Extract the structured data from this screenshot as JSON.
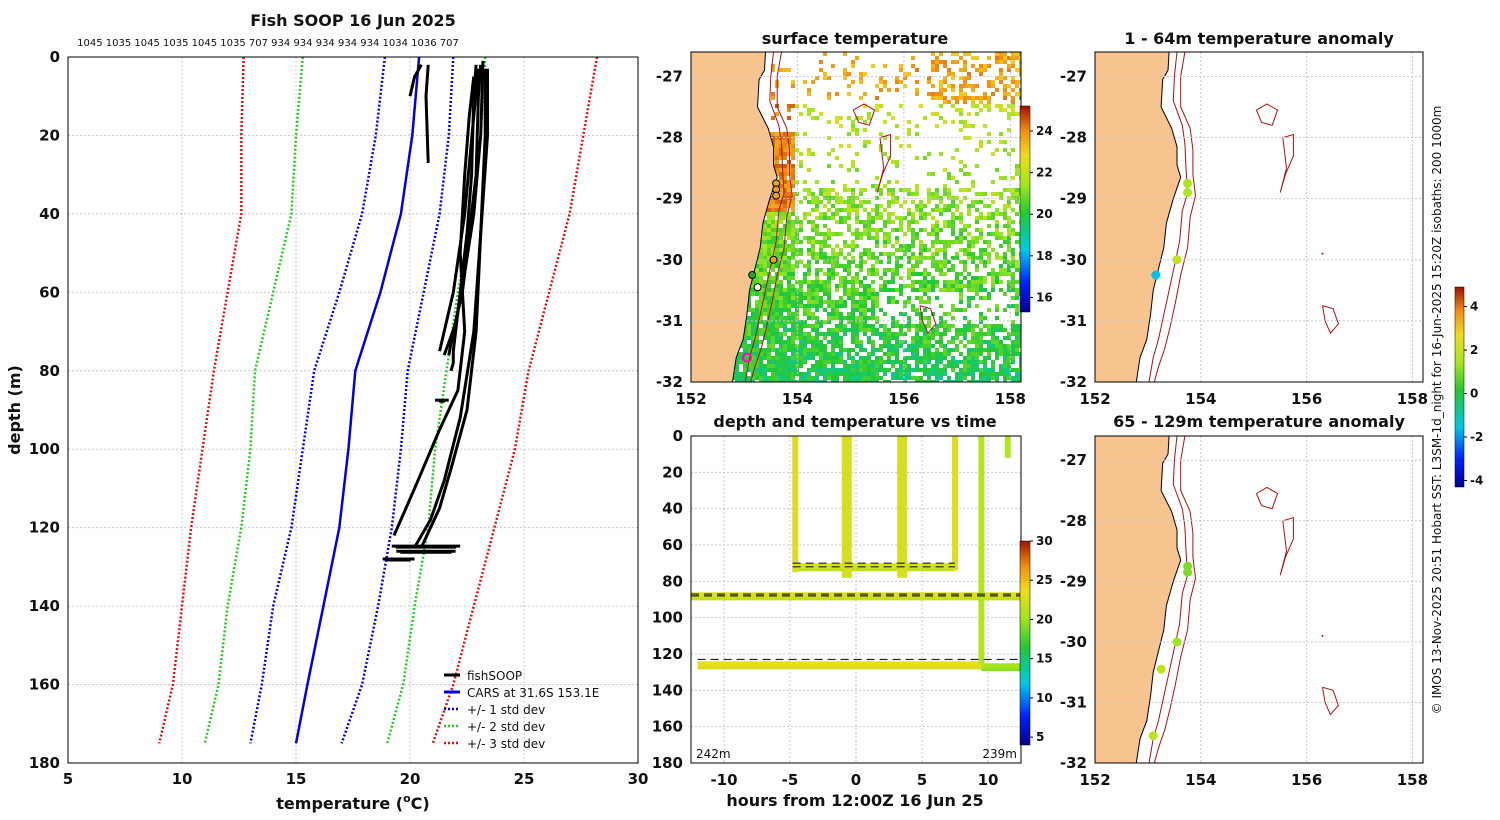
{
  "colors": {
    "land": "#F7C38E",
    "isobath": "#B01010",
    "cars": "#0000E0",
    "std1": "#0000E0",
    "std2": "#22CC22",
    "std3": "#E01010",
    "fish": "#000000"
  },
  "profile_panel": {
    "title": "Fish SOOP 16 Jun 2025",
    "top_ids": "1045 1035 1045 1035 1045 1035 707 934 934 934 934 934 1034 1036 707",
    "xlabel_main": "temperature (",
    "xlabel_sup": "o",
    "xlabel_end": "C)",
    "ylabel": "depth (m)",
    "legend": [
      "fishSOOP",
      "CARS at 31.6S 153.1E",
      "+/- 1 std dev",
      "+/- 2 std dev",
      "+/- 3 std dev"
    ]
  },
  "sst_panel": {
    "title": "surface temperature",
    "cbar_ticks": [
      "16",
      "18",
      "20",
      "22",
      "24"
    ]
  },
  "time_panel": {
    "title": "depth and temperature vs time",
    "xlabel": "hours from 12:00Z 16 Jun 25",
    "left_depth": "242m",
    "right_depth": "239m",
    "cbar_ticks": [
      "5",
      "10",
      "15",
      "20",
      "25",
      "30"
    ]
  },
  "anom_panel_top": {
    "title": "1 - 64m temperature anomaly"
  },
  "anom_panel_bottom": {
    "title": "65 - 129m temperature anomaly"
  },
  "anom_cbar_ticks": [
    "-4",
    "-2",
    "0",
    "2",
    "4"
  ],
  "side_text": "© IMOS 13-Nov-2025 20:51 Hobart SST: L3SM-1d_night for 16-Jun-2025 15:20Z isobaths: 200  1000m",
  "chart_data": [
    {
      "type": "line",
      "title": "Fish SOOP 16 Jun 2025",
      "xlabel": "temperature (oC)",
      "ylabel": "depth (m)",
      "xlim": [
        5,
        30
      ],
      "ylim": [
        180,
        0
      ],
      "xticks": [
        "5",
        "10",
        "15",
        "20",
        "25",
        "30"
      ],
      "yticks": [
        "0",
        "20",
        "40",
        "60",
        "80",
        "100",
        "120",
        "140",
        "160",
        "180"
      ],
      "depth": [
        0,
        20,
        40,
        60,
        80,
        100,
        120,
        140,
        160,
        175
      ],
      "series": [
        {
          "name": "CARS at 31.6S 153.1E",
          "temp": [
            20.4,
            20.1,
            19.6,
            18.7,
            17.6,
            17.3,
            16.9,
            16.2,
            15.5,
            15.0
          ]
        },
        {
          "name": "+1 std dev",
          "temp": [
            21.9,
            21.7,
            21.3,
            20.6,
            19.9,
            19.6,
            19.2,
            18.6,
            17.9,
            17.0
          ]
        },
        {
          "name": "-1 std dev",
          "temp": [
            18.9,
            18.5,
            17.9,
            16.9,
            15.8,
            15.3,
            14.8,
            14.0,
            13.5,
            13.0
          ]
        },
        {
          "name": "+2 std dev",
          "temp": [
            23.3,
            23.1,
            22.7,
            22.1,
            21.6,
            21.1,
            20.8,
            20.2,
            19.7,
            19.0
          ]
        },
        {
          "name": "-2 std dev",
          "temp": [
            15.3,
            15.0,
            14.8,
            14.0,
            13.2,
            13.0,
            12.6,
            12.0,
            11.6,
            11.0
          ]
        },
        {
          "name": "+3 std dev",
          "temp": [
            28.2,
            27.6,
            27.0,
            26.1,
            25.2,
            24.6,
            23.7,
            22.8,
            21.9,
            21.0
          ]
        },
        {
          "name": "-3 std dev",
          "temp": [
            12.7,
            12.6,
            12.6,
            12.0,
            11.4,
            10.9,
            10.4,
            10.0,
            9.6,
            9.0
          ]
        }
      ],
      "fish_profiles": [
        {
          "depth": [
            2,
            10,
            30,
            45,
            60,
            70,
            75,
            78,
            80
          ],
          "temp": [
            22.9,
            22.8,
            22.7,
            22.5,
            22.2,
            22.0,
            21.9,
            21.9,
            21.8
          ]
        },
        {
          "depth": [
            2,
            10,
            30,
            45,
            60,
            70,
            76
          ],
          "temp": [
            23.1,
            23.0,
            22.9,
            22.6,
            22.3,
            21.9,
            21.7
          ]
        },
        {
          "depth": [
            1,
            20,
            40,
            55,
            68,
            76
          ],
          "temp": [
            23.2,
            23.1,
            22.8,
            22.4,
            22.0,
            21.5
          ]
        },
        {
          "depth": [
            3,
            15,
            40,
            60,
            75
          ],
          "temp": [
            23.0,
            22.8,
            22.4,
            21.9,
            21.3
          ]
        },
        {
          "depth": [
            3,
            20,
            45,
            70,
            90,
            105,
            115,
            125
          ],
          "temp": [
            23.3,
            23.3,
            23.1,
            22.9,
            22.5,
            21.8,
            21.3,
            20.5
          ]
        },
        {
          "depth": [
            3,
            20,
            45,
            70,
            92,
            108,
            118,
            125
          ],
          "temp": [
            23.4,
            23.4,
            23.1,
            22.8,
            22.2,
            21.5,
            20.9,
            20.2
          ]
        },
        {
          "depth": [
            5,
            15,
            30,
            50,
            70,
            85,
            95,
            110,
            122
          ],
          "temp": [
            22.8,
            22.6,
            22.4,
            22.2,
            22.4,
            22.1,
            21.3,
            20.2,
            19.3
          ]
        },
        {
          "depth": [
            10,
            5,
            2
          ],
          "temp": [
            20.0,
            20.2,
            20.5
          ]
        },
        {
          "depth": [
            2,
            10,
            27
          ],
          "temp": [
            20.8,
            20.7,
            20.8
          ]
        }
      ],
      "fish_clusters": [
        {
          "depth": 87.5,
          "temp_min": 21.1,
          "temp_max": 21.7
        },
        {
          "depth": 124.7,
          "temp_min": 19.2,
          "temp_max": 22.2
        },
        {
          "depth": 126.0,
          "temp_min": 19.4,
          "temp_max": 22.0
        },
        {
          "depth": 128.0,
          "temp_min": 18.8,
          "temp_max": 20.2
        }
      ]
    },
    {
      "type": "heatmap",
      "title": "surface temperature",
      "xlim": [
        152,
        158.2
      ],
      "ylim": [
        -32,
        -26.6
      ],
      "xticks": [
        "152",
        "154",
        "156",
        "158"
      ],
      "yticks": [
        "-27",
        "-28",
        "-29",
        "-30",
        "-31",
        "-32"
      ],
      "colorbar": {
        "min": 15.3,
        "max": 25.2,
        "ticks": [
          16,
          18,
          20,
          22,
          24
        ]
      },
      "stations": [
        {
          "lon": 153.6,
          "lat": -28.75,
          "color": "#F0A020"
        },
        {
          "lon": 153.6,
          "lat": -28.85,
          "color": "#F0A020"
        },
        {
          "lon": 153.6,
          "lat": -28.95,
          "color": "#F0A020"
        },
        {
          "lon": 153.55,
          "lat": -30.0,
          "color": "#F0A020"
        },
        {
          "lon": 153.15,
          "lat": -30.25,
          "color": "#22AA22"
        },
        {
          "lon": 153.25,
          "lat": -30.45,
          "color": "#FFFFFF"
        },
        {
          "lon": 153.05,
          "lat": -31.6,
          "color": "#FF00CC"
        }
      ]
    },
    {
      "type": "scatter",
      "title": "depth and temperature vs time",
      "xlabel": "hours from 12:00Z 16 Jun 25",
      "xlim": [
        -12.5,
        12.5
      ],
      "ylim": [
        180,
        0
      ],
      "xticks": [
        "-10",
        "-5",
        "0",
        "5",
        "10"
      ],
      "yticks": [
        "0",
        "20",
        "40",
        "60",
        "80",
        "100",
        "120",
        "140",
        "160",
        "180"
      ],
      "colorbar": {
        "min": 4,
        "max": 30,
        "ticks": [
          5,
          10,
          15,
          20,
          25,
          30
        ]
      },
      "dashed_depths": [
        {
          "depth": 70,
          "t0": -4.8,
          "t1": 7.5
        },
        {
          "depth": 72,
          "t0": -4.8,
          "t1": 7.5
        },
        {
          "depth": 87,
          "t0": -12.5,
          "t1": 12.5
        },
        {
          "depth": 88,
          "t0": -12.5,
          "t1": 12.5
        },
        {
          "depth": 123,
          "t0": -12.0,
          "t1": 12.5
        }
      ],
      "vertical_casts": [
        {
          "t": -4.6,
          "d0": 0,
          "d1": 75,
          "temp": 23
        },
        {
          "t": -0.7,
          "d0": 0,
          "d1": 78,
          "temp": 22.5
        },
        {
          "t": 3.5,
          "d0": 0,
          "d1": 78,
          "temp": 22.5
        },
        {
          "t": 7.5,
          "d0": 0,
          "d1": 74,
          "temp": 23
        },
        {
          "t": 9.5,
          "d0": 0,
          "d1": 126,
          "temp": 21
        },
        {
          "t": 11.5,
          "d0": 0,
          "d1": 12,
          "temp": 21
        }
      ],
      "tracks": [
        {
          "depth": 72,
          "t0": -4.5,
          "t1": 7.5,
          "temp": 22.5
        },
        {
          "depth": 88,
          "t0": -12.5,
          "t1": 12.5,
          "temp": 22.8
        },
        {
          "depth": 126,
          "t0": -12.0,
          "t1": 9.5,
          "temp": 23.5
        },
        {
          "depth": 127,
          "t0": 9.5,
          "t1": 12.5,
          "temp": 20.5
        }
      ]
    },
    {
      "type": "scatter",
      "title": "1 - 64m temperature anomaly",
      "xlim": [
        152,
        158.2
      ],
      "ylim": [
        -32,
        -26.6
      ],
      "xticks": [
        "152",
        "154",
        "156",
        "158"
      ],
      "yticks": [
        "-27",
        "-28",
        "-29",
        "-30",
        "-31",
        "-32"
      ],
      "points": [
        {
          "lon": 153.75,
          "lat": -28.75,
          "anom": 1.6
        },
        {
          "lon": 153.75,
          "lat": -28.9,
          "anom": 1.6
        },
        {
          "lon": 153.55,
          "lat": -30.0,
          "anom": 1.9
        },
        {
          "lon": 153.15,
          "lat": -30.25,
          "anom": -1.6
        }
      ]
    },
    {
      "type": "scatter",
      "title": "65 - 129m temperature anomaly",
      "xlim": [
        152,
        158.2
      ],
      "ylim": [
        -32,
        -26.6
      ],
      "xticks": [
        "152",
        "154",
        "156",
        "158"
      ],
      "yticks": [
        "-27",
        "-28",
        "-29",
        "-30",
        "-31",
        "-32"
      ],
      "points": [
        {
          "lon": 153.75,
          "lat": -28.75,
          "anom": 1.0
        },
        {
          "lon": 153.75,
          "lat": -28.85,
          "anom": 1.0
        },
        {
          "lon": 153.55,
          "lat": -30.0,
          "anom": 1.4
        },
        {
          "lon": 153.25,
          "lat": -30.45,
          "anom": 1.9
        },
        {
          "lon": 153.1,
          "lat": -31.55,
          "anom": 1.9
        }
      ],
      "colorbar": {
        "min": -4.3,
        "max": 4.9,
        "ticks": [
          -4,
          -2,
          0,
          2,
          4
        ]
      }
    }
  ]
}
